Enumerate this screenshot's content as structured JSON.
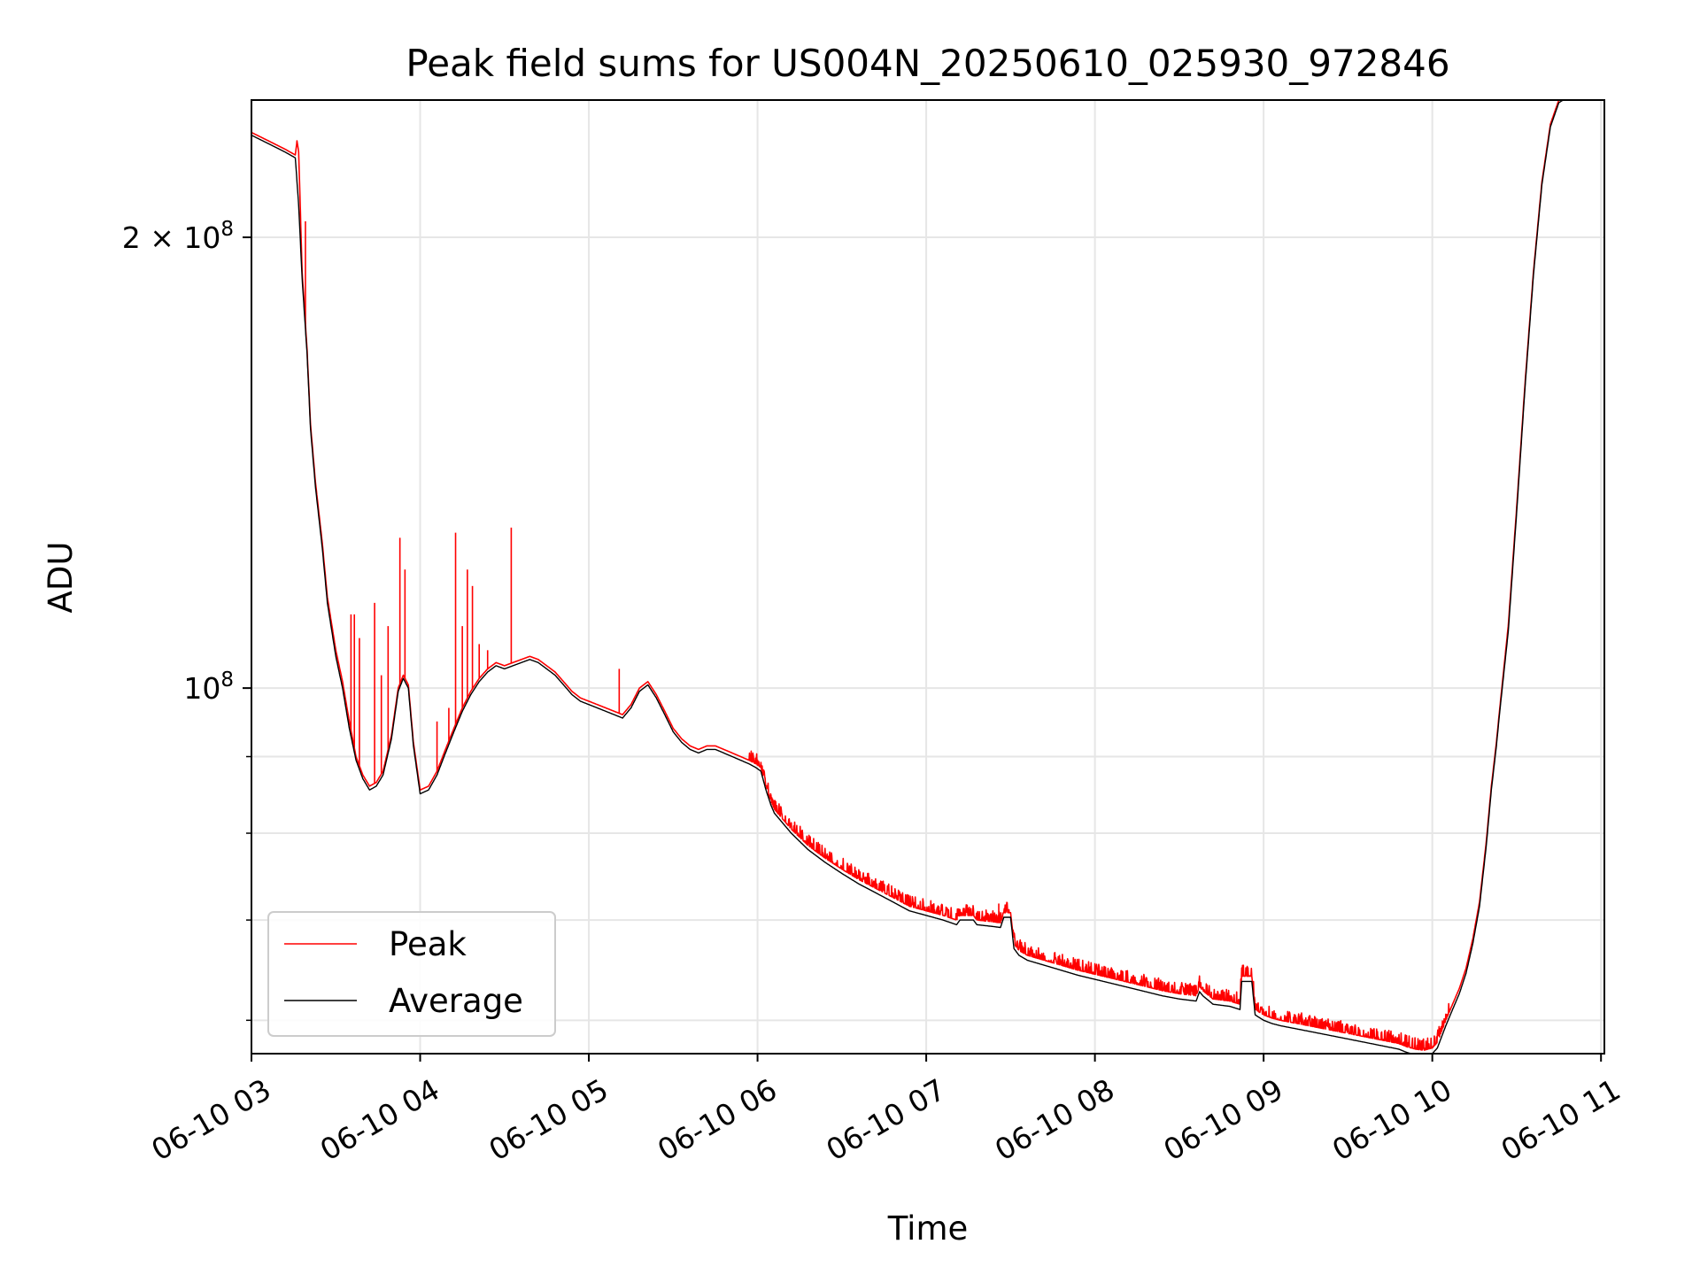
{
  "chart_data": {
    "type": "line",
    "title": "Peak field sums for US004N_20250610_025930_972846",
    "xlabel": "Time",
    "ylabel": "ADU",
    "yscale": "log",
    "grid": true,
    "legend_position": "lower-left",
    "x_tick_labels": [
      "06-10 03",
      "06-10 04",
      "06-10 05",
      "06-10 06",
      "06-10 07",
      "06-10 08",
      "06-10 09",
      "06-10 10",
      "06-10 11"
    ],
    "x_tick_hours": [
      3,
      4,
      5,
      6,
      7,
      8,
      9,
      10,
      11
    ],
    "xlim_hours": [
      3.0,
      11.02
    ],
    "y_major_ticks": [
      {
        "value": 100000000,
        "mantissa": "",
        "exponent": "8"
      },
      {
        "value": 200000000,
        "mantissa": "2",
        "exponent": "8"
      }
    ],
    "y_minor_ticks": [
      60000000,
      70000000,
      80000000,
      90000000
    ],
    "ylim": [
      57000000,
      247000000
    ],
    "series": [
      {
        "name": "Peak",
        "color": "#ff0000",
        "x_hours": [
          3.0,
          3.1,
          3.2,
          3.26,
          3.27,
          3.28,
          3.3,
          3.33,
          3.35,
          3.38,
          3.42,
          3.45,
          3.5,
          3.54,
          3.58,
          3.62,
          3.66,
          3.7,
          3.74,
          3.78,
          3.83,
          3.87,
          3.9,
          3.93,
          3.96,
          4.0,
          4.05,
          4.1,
          4.15,
          4.2,
          4.25,
          4.3,
          4.35,
          4.4,
          4.45,
          4.5,
          4.55,
          4.6,
          4.65,
          4.7,
          4.75,
          4.8,
          4.85,
          4.9,
          4.95,
          5.0,
          5.05,
          5.1,
          5.15,
          5.2,
          5.25,
          5.3,
          5.35,
          5.4,
          5.45,
          5.5,
          5.55,
          5.6,
          5.65,
          5.7,
          5.75,
          5.8,
          5.85,
          5.9,
          5.95,
          5.99,
          6.02,
          6.05,
          6.08,
          6.1,
          6.2,
          6.3,
          6.4,
          6.5,
          6.6,
          6.7,
          6.8,
          6.9,
          7.0,
          7.1,
          7.18,
          7.2,
          7.28,
          7.3,
          7.4,
          7.44,
          7.46,
          7.5,
          7.52,
          7.55,
          7.6,
          7.7,
          7.8,
          7.9,
          8.0,
          8.1,
          8.2,
          8.3,
          8.4,
          8.5,
          8.6,
          8.62,
          8.64,
          8.7,
          8.8,
          8.86,
          8.87,
          8.93,
          8.95,
          9.0,
          9.05,
          9.1,
          9.2,
          9.3,
          9.4,
          9.5,
          9.6,
          9.7,
          9.8,
          9.85,
          9.9,
          9.95,
          10.0,
          10.03,
          10.08,
          10.12,
          10.16,
          10.2,
          10.24,
          10.28,
          10.32,
          10.35,
          10.38,
          10.4,
          10.45,
          10.5,
          10.55,
          10.6,
          10.65,
          10.7,
          10.75,
          10.8,
          10.85,
          10.88
        ],
        "values": [
          235000000,
          232000000,
          229000000,
          227000000,
          232000000,
          228000000,
          190000000,
          168000000,
          150000000,
          137000000,
          125000000,
          115000000,
          106000000,
          101000000,
          95000000,
          90000000,
          87500000,
          86000000,
          86500000,
          88000000,
          93000000,
          100000000,
          102000000,
          100500000,
          92000000,
          85500000,
          86000000,
          88000000,
          91000000,
          94000000,
          97000000,
          99500000,
          101500000,
          103000000,
          104000000,
          103500000,
          104000000,
          104500000,
          105000000,
          104500000,
          103500000,
          102500000,
          101000000,
          99500000,
          98500000,
          98000000,
          97500000,
          97000000,
          96500000,
          96000000,
          97500000,
          100000000,
          101000000,
          99000000,
          96500000,
          94000000,
          92500000,
          91500000,
          91000000,
          91500000,
          91500000,
          91000000,
          90500000,
          90000000,
          89500000,
          89000000,
          88500000,
          86000000,
          84000000,
          83000000,
          80500000,
          78500000,
          77000000,
          75700000,
          74500000,
          73500000,
          72500000,
          71500000,
          71000000,
          70500000,
          70000000,
          70500000,
          70500000,
          70000000,
          69800000,
          69700000,
          70800000,
          70800000,
          67500000,
          66800000,
          66300000,
          65800000,
          65300000,
          64800000,
          64400000,
          64000000,
          63600000,
          63200000,
          62800000,
          62500000,
          62300000,
          63200000,
          62800000,
          62000000,
          61800000,
          61500000,
          64200000,
          64200000,
          61000000,
          60500000,
          60200000,
          60000000,
          59700000,
          59400000,
          59100000,
          58800000,
          58500000,
          58200000,
          57900000,
          57600000,
          57400000,
          57300000,
          57500000,
          58000000,
          60000000,
          61500000,
          63000000,
          65000000,
          68000000,
          72000000,
          79000000,
          86000000,
          92000000,
          97000000,
          110000000,
          132000000,
          160000000,
          190000000,
          218000000,
          238000000,
          247000000,
          249000000,
          250000000,
          250000000
        ],
        "spikes": [
          {
            "x": 3.32,
            "value": 205000000
          },
          {
            "x": 3.59,
            "value": 112000000
          },
          {
            "x": 3.61,
            "value": 112000000
          },
          {
            "x": 3.64,
            "value": 108000000
          },
          {
            "x": 3.73,
            "value": 114000000
          },
          {
            "x": 3.77,
            "value": 102000000
          },
          {
            "x": 3.81,
            "value": 110000000
          },
          {
            "x": 3.88,
            "value": 126000000
          },
          {
            "x": 3.91,
            "value": 120000000
          },
          {
            "x": 4.1,
            "value": 95000000
          },
          {
            "x": 4.17,
            "value": 97000000
          },
          {
            "x": 4.21,
            "value": 127000000
          },
          {
            "x": 4.25,
            "value": 110000000
          },
          {
            "x": 4.28,
            "value": 120000000
          },
          {
            "x": 4.31,
            "value": 117000000
          },
          {
            "x": 4.35,
            "value": 107000000
          },
          {
            "x": 4.4,
            "value": 106000000
          },
          {
            "x": 4.54,
            "value": 128000000
          },
          {
            "x": 5.18,
            "value": 103000000
          },
          {
            "x": 7.43,
            "value": 71800000
          }
        ]
      },
      {
        "name": "Average",
        "color": "#000000",
        "x_hours": [
          3.0,
          3.1,
          3.2,
          3.26,
          3.28,
          3.3,
          3.33,
          3.35,
          3.38,
          3.42,
          3.45,
          3.5,
          3.54,
          3.58,
          3.62,
          3.66,
          3.7,
          3.74,
          3.78,
          3.83,
          3.87,
          3.9,
          3.93,
          3.96,
          4.0,
          4.05,
          4.1,
          4.15,
          4.2,
          4.25,
          4.3,
          4.35,
          4.4,
          4.45,
          4.5,
          4.55,
          4.6,
          4.65,
          4.7,
          4.75,
          4.8,
          4.85,
          4.9,
          4.95,
          5.0,
          5.05,
          5.1,
          5.15,
          5.2,
          5.25,
          5.3,
          5.35,
          5.4,
          5.45,
          5.5,
          5.55,
          5.6,
          5.65,
          5.7,
          5.75,
          5.8,
          5.85,
          5.9,
          5.95,
          5.99,
          6.02,
          6.05,
          6.08,
          6.1,
          6.2,
          6.3,
          6.4,
          6.5,
          6.6,
          6.7,
          6.8,
          6.9,
          7.0,
          7.1,
          7.18,
          7.2,
          7.28,
          7.3,
          7.4,
          7.44,
          7.46,
          7.5,
          7.52,
          7.55,
          7.6,
          7.7,
          7.8,
          7.9,
          8.0,
          8.1,
          8.2,
          8.3,
          8.4,
          8.5,
          8.6,
          8.62,
          8.64,
          8.7,
          8.8,
          8.86,
          8.87,
          8.93,
          8.95,
          9.0,
          9.05,
          9.1,
          9.2,
          9.3,
          9.4,
          9.5,
          9.6,
          9.7,
          9.8,
          9.85,
          9.9,
          9.95,
          10.0,
          10.03,
          10.08,
          10.12,
          10.16,
          10.2,
          10.24,
          10.28,
          10.32,
          10.35,
          10.38,
          10.4,
          10.45,
          10.5,
          10.55,
          10.6,
          10.65,
          10.7,
          10.75,
          10.8,
          10.85,
          10.88
        ],
        "values": [
          234000000,
          231000000,
          228000000,
          226000000,
          210000000,
          188000000,
          167000000,
          149000000,
          136000000,
          124000000,
          114000000,
          105000000,
          100000000,
          94000000,
          89500000,
          87000000,
          85500000,
          86000000,
          87500000,
          92500000,
          99500000,
          101500000,
          100000000,
          91500000,
          85000000,
          85500000,
          87500000,
          90500000,
          93500000,
          96500000,
          99000000,
          101000000,
          102500000,
          103500000,
          103000000,
          103500000,
          104000000,
          104500000,
          104000000,
          103000000,
          102000000,
          100500000,
          99000000,
          98000000,
          97500000,
          97000000,
          96500000,
          96000000,
          95500000,
          97000000,
          99500000,
          100500000,
          98500000,
          96000000,
          93500000,
          92000000,
          91000000,
          90500000,
          91000000,
          91000000,
          90500000,
          90000000,
          89500000,
          89000000,
          88500000,
          88000000,
          85500000,
          83500000,
          82500000,
          80000000,
          78000000,
          76500000,
          75200000,
          74000000,
          73000000,
          72000000,
          71000000,
          70500000,
          70000000,
          69500000,
          70000000,
          70000000,
          69500000,
          69300000,
          69200000,
          70300000,
          70300000,
          67000000,
          66300000,
          65800000,
          65300000,
          64800000,
          64300000,
          63900000,
          63500000,
          63100000,
          62700000,
          62300000,
          62000000,
          61800000,
          62700000,
          62300000,
          61500000,
          61300000,
          61000000,
          63700000,
          63700000,
          60500000,
          60000000,
          59700000,
          59500000,
          59200000,
          58900000,
          58600000,
          58300000,
          58000000,
          57700000,
          57400000,
          57100000,
          56900000,
          56800000,
          57000000,
          57500000,
          59500000,
          61000000,
          62500000,
          64500000,
          67500000,
          71500000,
          78500000,
          85500000,
          91500000,
          96500000,
          109000000,
          131000000,
          159000000,
          189000000,
          217000000,
          237000000,
          246000000,
          248000000,
          249000000,
          249000000
        ]
      }
    ]
  }
}
